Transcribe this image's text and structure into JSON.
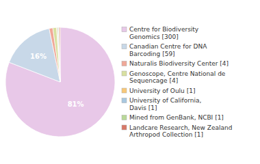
{
  "chart_data": {
    "type": "pie",
    "categories": [
      "Centre for Biodiversity\nGenomics [300]",
      "Canadian Centre for DNA\nBarcoding [59]",
      "Naturalis Biodiversity Center [4]",
      "Genoscope, Centre National de\nSequencage [4]",
      "University of Oulu [1]",
      "University of California,\nDavis [1]",
      "Mined from GenBank, NCBI [1]",
      "Landcare Research, New Zealand\nArthropod Collection [1]"
    ],
    "values": [
      80.86,
      15.9,
      1.08,
      1.08,
      0.27,
      0.27,
      0.27,
      0.27
    ],
    "value_labels": [
      "81%",
      "16%",
      null,
      null,
      null,
      null,
      null,
      null
    ],
    "data_labels": true,
    "colors": [
      "#e8c8e8",
      "#c8d8e8",
      "#f0a898",
      "#d8e0a0",
      "#f8c878",
      "#a8c8e0",
      "#b8d898",
      "#d87868"
    ],
    "legend": "right"
  }
}
